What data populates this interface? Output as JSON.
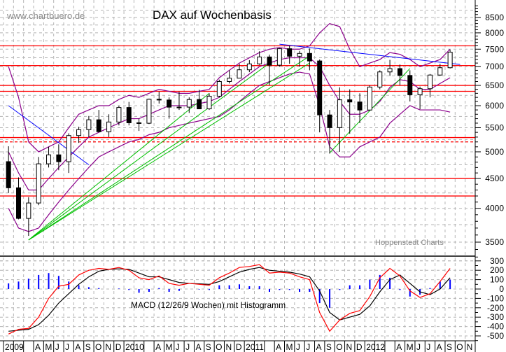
{
  "chart_data": {
    "type": "candlestick",
    "title": "DAX auf Wochenbasis",
    "watermark": "www.chartbuero.de",
    "source": "Hoppenstedt Charts",
    "y_scale": "log",
    "ylim": [
      3300,
      8900
    ],
    "y_ticks": [
      3500,
      4000,
      4500,
      5000,
      5500,
      6000,
      6500,
      7000,
      7500,
      8000,
      8500
    ],
    "grid": true,
    "x_labels": [
      "2009",
      "",
      "",
      "A",
      "M",
      "J",
      "J",
      "A",
      "S",
      "O",
      "N",
      "D",
      "2010",
      "",
      "",
      "A",
      "M",
      "J",
      "J",
      "A",
      "S",
      "O",
      "N",
      "D",
      "2011",
      "",
      "",
      "A",
      "M",
      "J",
      "J",
      "A",
      "S",
      "O",
      "N",
      "D",
      "2012",
      "",
      "",
      "A",
      "M",
      "J",
      "J",
      "A",
      "S",
      "O",
      "N"
    ],
    "ohlc": [
      [
        4810,
        5111,
        4250,
        4338
      ],
      [
        4338,
        4520,
        3830,
        3844
      ],
      [
        3844,
        4180,
        3588,
        4085
      ],
      [
        4085,
        4900,
        4050,
        4769
      ],
      [
        4769,
        5100,
        4700,
        4941
      ],
      [
        4941,
        5150,
        4650,
        4809
      ],
      [
        4809,
        5380,
        4600,
        5332
      ],
      [
        5332,
        5520,
        5180,
        5458
      ],
      [
        5458,
        5760,
        5300,
        5675
      ],
      [
        5675,
        5900,
        5400,
        5414
      ],
      [
        5414,
        5800,
        5300,
        5625
      ],
      [
        5625,
        6000,
        5550,
        5957
      ],
      [
        5957,
        6090,
        5550,
        5608
      ],
      [
        5608,
        5700,
        5430,
        5598
      ],
      [
        5598,
        6170,
        5580,
        6154
      ],
      [
        6154,
        6340,
        6050,
        6136
      ],
      [
        6136,
        6200,
        5700,
        5965
      ],
      [
        5965,
        6340,
        5900,
        5966
      ],
      [
        5966,
        6200,
        5830,
        6148
      ],
      [
        6148,
        6390,
        5920,
        5925
      ],
      [
        5925,
        6300,
        5900,
        6229
      ],
      [
        6229,
        6650,
        6200,
        6601
      ],
      [
        6601,
        6900,
        6550,
        6688
      ],
      [
        6688,
        7080,
        6700,
        6914
      ],
      [
        6914,
        7180,
        6850,
        7077
      ],
      [
        7077,
        7440,
        7050,
        7273
      ],
      [
        7273,
        7340,
        6510,
        7041
      ],
      [
        7041,
        7530,
        7000,
        7514
      ],
      [
        7514,
        7600,
        7080,
        7294
      ],
      [
        7294,
        7450,
        7000,
        7376
      ],
      [
        7376,
        7520,
        6900,
        7159
      ],
      [
        7159,
        7200,
        5400,
        5785
      ],
      [
        5785,
        5900,
        4965,
        5502
      ],
      [
        5502,
        6450,
        5000,
        6141
      ],
      [
        6141,
        6400,
        5370,
        6088
      ],
      [
        6088,
        6300,
        5600,
        5898
      ],
      [
        5898,
        6500,
        5900,
        6458
      ],
      [
        6458,
        6900,
        6400,
        6856
      ],
      [
        6856,
        7190,
        6750,
        6947
      ],
      [
        6947,
        7060,
        6500,
        6761
      ],
      [
        6761,
        6900,
        6100,
        6264
      ],
      [
        6264,
        6470,
        5915,
        6416
      ],
      [
        6416,
        6800,
        6200,
        6772
      ],
      [
        6772,
        7080,
        6750,
        6971
      ],
      [
        6971,
        7480,
        6950,
        7412
      ]
    ],
    "bollinger": {
      "upper": [
        7000,
        6200,
        5200,
        5000,
        5100,
        5200,
        5500,
        5800,
        5900,
        6000,
        6000,
        6150,
        6250,
        6200,
        6300,
        6400,
        6350,
        6300,
        6300,
        6350,
        6400,
        6700,
        6900,
        7100,
        7250,
        7400,
        7500,
        7550,
        7500,
        7500,
        7600,
        8000,
        8300,
        8200,
        7500,
        7000,
        7100,
        7200,
        7400,
        7350,
        7200,
        7000,
        7100,
        7200,
        7500
      ],
      "middle": [
        5000,
        4600,
        4300,
        4300,
        4500,
        4700,
        4900,
        5100,
        5300,
        5400,
        5500,
        5600,
        5700,
        5700,
        5800,
        5900,
        6000,
        6000,
        6000,
        6050,
        6100,
        6200,
        6400,
        6600,
        6800,
        7000,
        7100,
        7200,
        7250,
        7250,
        7250,
        7000,
        6500,
        6100,
        5800,
        5800,
        5900,
        6100,
        6450,
        6650,
        6600,
        6400,
        6400,
        6550,
        6700
      ],
      "lower": [
        4000,
        3700,
        3650,
        3700,
        3900,
        4100,
        4300,
        4500,
        4700,
        4900,
        5000,
        5100,
        5200,
        5250,
        5350,
        5400,
        5500,
        5550,
        5600,
        5650,
        5700,
        5750,
        5900,
        6100,
        6300,
        6500,
        6600,
        6700,
        6800,
        6850,
        6800,
        6000,
        5100,
        4900,
        4900,
        5100,
        5200,
        5300,
        5600,
        5800,
        6000,
        5900,
        5900,
        5900,
        5850
      ]
    },
    "horizontal_levels": [
      {
        "value": 7600,
        "style": "solid"
      },
      {
        "value": 7030,
        "style": "solid"
      },
      {
        "value": 6500,
        "style": "solid"
      },
      {
        "value": 6350,
        "style": "solid"
      },
      {
        "value": 5290,
        "style": "solid"
      },
      {
        "value": 5200,
        "style": "dashed"
      },
      {
        "value": 4500,
        "style": "solid"
      },
      {
        "value": 4200,
        "style": "solid"
      }
    ],
    "trendlines": [
      {
        "color": "blue",
        "from": [
          "2009-01",
          6000
        ],
        "to": [
          "2009-09",
          4750
        ]
      },
      {
        "color": "blue",
        "from": [
          "2011-04",
          7650
        ],
        "to": [
          "2012-10",
          7060
        ]
      },
      {
        "color": "green",
        "from": [
          "2009-03",
          3530
        ],
        "to": [
          "2010-09",
          6300
        ]
      },
      {
        "color": "green",
        "from": [
          "2009-03",
          3530
        ],
        "to": [
          "2011-03",
          7100
        ]
      },
      {
        "color": "green",
        "from": [
          "2009-03",
          3530
        ],
        "to": [
          "2011-07",
          7300
        ]
      },
      {
        "color": "green",
        "from": [
          "2009-03",
          3530
        ],
        "to": [
          "2011-07",
          7100
        ]
      },
      {
        "color": "green",
        "from": [
          "2011-09",
          4980
        ],
        "to": [
          "2012-05",
          6950
        ]
      }
    ],
    "macd": {
      "label": "MACD (12/26/9 Wochen) mit Histogramm",
      "ylim": [
        -560,
        330
      ],
      "y_ticks": [
        300,
        200,
        100,
        0,
        -100,
        -200,
        -300,
        -400,
        -500
      ],
      "macd_line": [
        -480,
        -430,
        -420,
        -300,
        -100,
        30,
        50,
        150,
        200,
        220,
        210,
        230,
        200,
        120,
        100,
        140,
        60,
        40,
        60,
        50,
        40,
        120,
        170,
        230,
        240,
        260,
        170,
        180,
        170,
        130,
        100,
        -250,
        -450,
        -330,
        -260,
        -230,
        -80,
        120,
        220,
        140,
        -20,
        -90,
        -50,
        80,
        220
      ],
      "signal_line": [
        -450,
        -440,
        -430,
        -380,
        -280,
        -150,
        -50,
        50,
        130,
        190,
        210,
        215,
        210,
        170,
        130,
        130,
        100,
        70,
        60,
        55,
        50,
        80,
        130,
        180,
        210,
        230,
        200,
        190,
        180,
        160,
        130,
        -20,
        -250,
        -330,
        -300,
        -270,
        -180,
        -30,
        100,
        150,
        60,
        -30,
        -60,
        0,
        120
      ],
      "histogram": [
        60,
        80,
        110,
        150,
        170,
        140,
        80,
        40,
        20,
        10,
        0,
        5,
        -10,
        -40,
        -30,
        10,
        -30,
        -20,
        0,
        -5,
        -10,
        40,
        40,
        50,
        30,
        30,
        -30,
        -10,
        -10,
        -30,
        -30,
        -150,
        -200,
        -10,
        40,
        40,
        100,
        150,
        120,
        -10,
        -80,
        -60,
        10,
        80,
        100
      ]
    },
    "colors": {
      "candle": "#000000",
      "bollinger": "#8b008b",
      "levels": "#ff0000",
      "trend_blue": "#0000ff",
      "trend_green": "#00c000",
      "macd_line": "#ff0000",
      "signal_line": "#000000",
      "histogram": "#0000ff",
      "grid": "#b4b4b4"
    }
  }
}
